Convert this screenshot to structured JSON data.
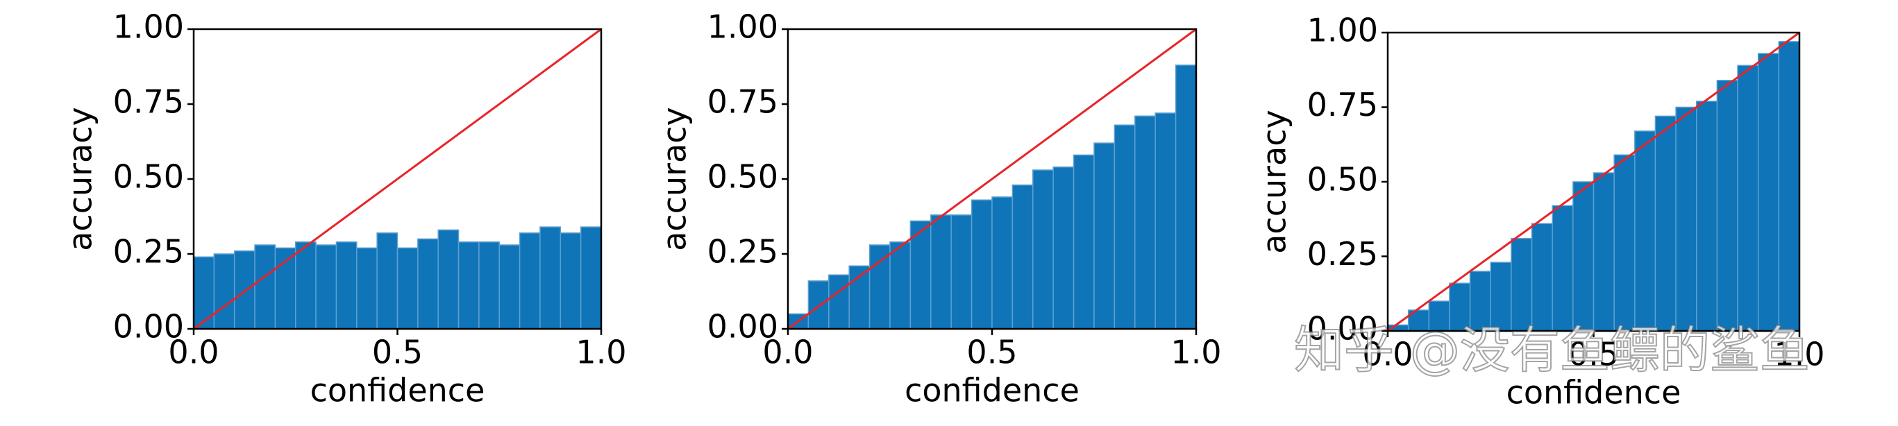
{
  "chart_data": [
    {
      "type": "histogram",
      "xlabel": "confidence",
      "ylabel": "accuracy",
      "color": "#0f75b8",
      "reference_color": "#e8242a",
      "bins": [
        0,
        0.05,
        0.1,
        0.15,
        0.2,
        0.25,
        0.3,
        0.35,
        0.4,
        0.45,
        0.5,
        0.55,
        0.6,
        0.65,
        0.7,
        0.75,
        0.8,
        0.85,
        0.9,
        0.95,
        1
      ],
      "values": [
        0.24,
        0.25,
        0.26,
        0.28,
        0.27,
        0.29,
        0.28,
        0.29,
        0.27,
        0.32,
        0.27,
        0.3,
        0.33,
        0.29,
        0.29,
        0.28,
        0.32,
        0.34,
        0.32,
        0.34
      ],
      "xlim": [
        0,
        1
      ],
      "ylim": [
        0,
        1
      ],
      "xticks": [
        {
          "value": 0,
          "label": "0.0"
        },
        {
          "value": 0.5,
          "label": "0.5"
        },
        {
          "value": 1,
          "label": "1.0"
        }
      ],
      "yticks": [
        {
          "value": 0,
          "label": "0.00"
        },
        {
          "value": 0.25,
          "label": "0.25"
        },
        {
          "value": 0.5,
          "label": "0.50"
        },
        {
          "value": 0.75,
          "label": "0.75"
        },
        {
          "value": 1,
          "label": "1.00"
        }
      ]
    },
    {
      "type": "histogram",
      "xlabel": "confidence",
      "ylabel": "accuracy",
      "color": "#0f75b8",
      "reference_color": "#e8242a",
      "bins": [
        0,
        0.05,
        0.1,
        0.15,
        0.2,
        0.25,
        0.3,
        0.35,
        0.4,
        0.45,
        0.5,
        0.55,
        0.6,
        0.65,
        0.7,
        0.75,
        0.8,
        0.85,
        0.9,
        0.95,
        1
      ],
      "values": [
        0.05,
        0.16,
        0.18,
        0.21,
        0.28,
        0.29,
        0.36,
        0.38,
        0.38,
        0.43,
        0.44,
        0.48,
        0.53,
        0.54,
        0.58,
        0.62,
        0.68,
        0.71,
        0.72,
        0.88
      ],
      "xlim": [
        0,
        1
      ],
      "ylim": [
        0,
        1
      ],
      "xticks": [
        {
          "value": 0,
          "label": "0.0"
        },
        {
          "value": 0.5,
          "label": "0.5"
        },
        {
          "value": 1,
          "label": "1.0"
        }
      ],
      "yticks": [
        {
          "value": 0,
          "label": "0.00"
        },
        {
          "value": 0.25,
          "label": "0.25"
        },
        {
          "value": 0.5,
          "label": "0.50"
        },
        {
          "value": 0.75,
          "label": "0.75"
        },
        {
          "value": 1,
          "label": "1.00"
        }
      ]
    },
    {
      "type": "histogram",
      "xlabel": "confidence",
      "ylabel": "accuracy",
      "color": "#0f75b8",
      "reference_color": "#e8242a",
      "bins": [
        0,
        0.05,
        0.1,
        0.15,
        0.2,
        0.25,
        0.3,
        0.35,
        0.4,
        0.45,
        0.5,
        0.55,
        0.6,
        0.65,
        0.7,
        0.75,
        0.8,
        0.85,
        0.9,
        0.95,
        1
      ],
      "values": [
        0.02,
        0.07,
        0.1,
        0.16,
        0.2,
        0.23,
        0.31,
        0.36,
        0.42,
        0.5,
        0.53,
        0.59,
        0.67,
        0.72,
        0.75,
        0.77,
        0.84,
        0.89,
        0.93,
        0.97
      ],
      "xlim": [
        0,
        1
      ],
      "ylim": [
        0,
        1
      ],
      "xticks": [
        {
          "value": 0,
          "label": "0.0"
        },
        {
          "value": 0.5,
          "label": "0.5"
        },
        {
          "value": 1,
          "label": "1.0"
        }
      ],
      "yticks": [
        {
          "value": 0,
          "label": "0.00"
        },
        {
          "value": 0.25,
          "label": "0.25"
        },
        {
          "value": 0.5,
          "label": "0.50"
        },
        {
          "value": 0.75,
          "label": "0.75"
        },
        {
          "value": 1,
          "label": "1.00"
        }
      ]
    }
  ],
  "watermark": "知乎 @没有鱼鳔的鲨鱼"
}
